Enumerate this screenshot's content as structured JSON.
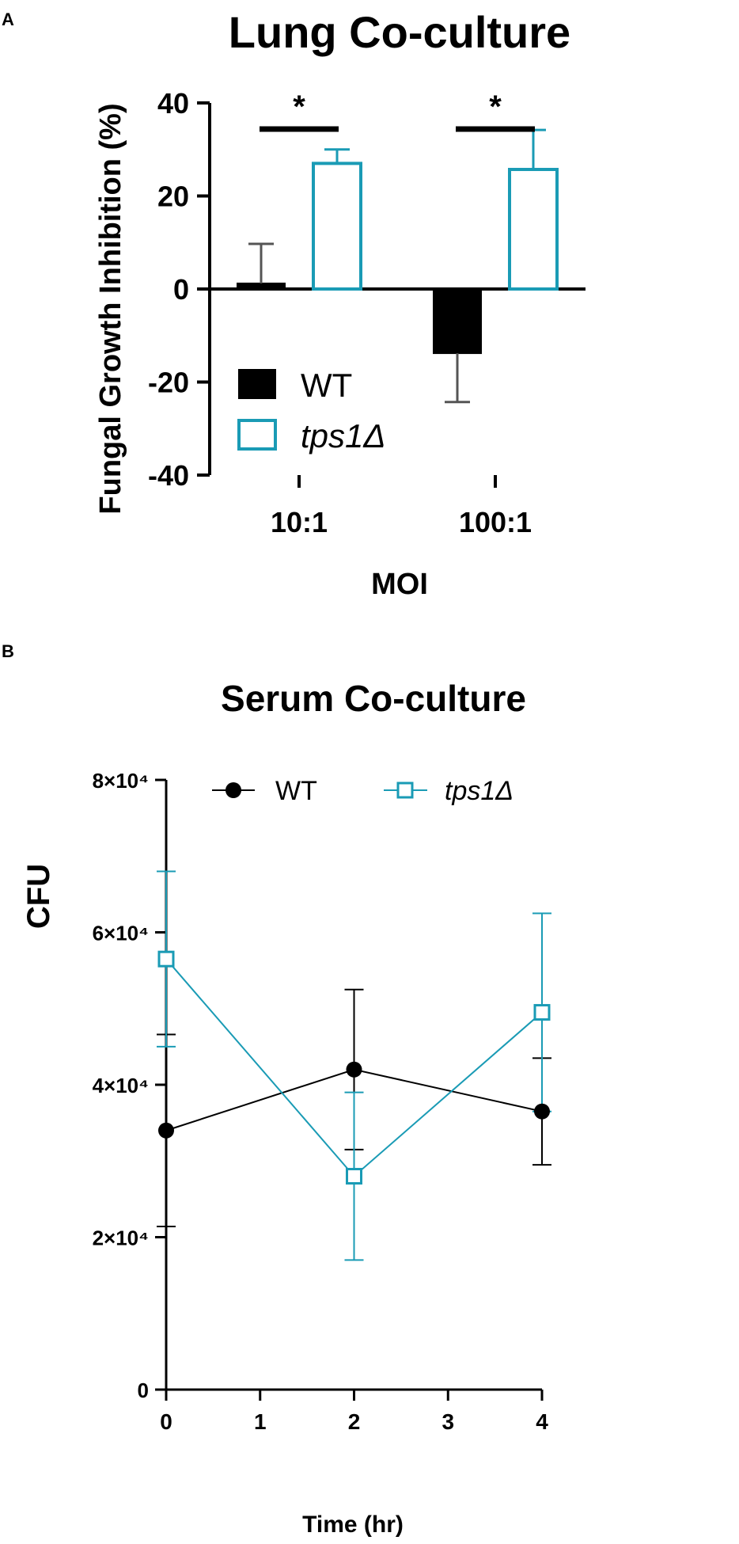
{
  "chart_data": [
    {
      "type": "bar",
      "panel_label": "A",
      "title": "Lung Co-culture",
      "xlabel": "MOI",
      "ylabel": "Fungal Growth Inhibition (%)",
      "ylim": [
        -40,
        40
      ],
      "yticks": [
        -40,
        -20,
        0,
        20,
        40
      ],
      "categories": [
        "10:1",
        "100:1"
      ],
      "series": [
        {
          "name": "WT",
          "values": [
            1.2,
            -13.8
          ],
          "errors": [
            8.5,
            10.5
          ],
          "color": "#000000",
          "fill": "filled"
        },
        {
          "name": "tps1Δ",
          "values": [
            27.0,
            25.7
          ],
          "errors": [
            3.0,
            8.5
          ],
          "color": "#1a9bb5",
          "fill": "open"
        }
      ],
      "annotations": [
        {
          "text": "*",
          "category": "10:1"
        },
        {
          "text": "*",
          "category": "100:1"
        }
      ],
      "legend_position": "bottom-left"
    },
    {
      "type": "line",
      "panel_label": "B",
      "title": "Serum Co-culture",
      "xlabel": "Time (hr)",
      "ylabel": "CFU",
      "xlim": [
        0,
        4
      ],
      "xticks": [
        "0",
        "1",
        "2",
        "3",
        "4"
      ],
      "ylim": [
        0,
        80000
      ],
      "ytick_values": [
        0,
        20000,
        40000,
        60000,
        80000
      ],
      "ytick_labels": [
        "0",
        "2×10⁴",
        "4×10⁴",
        "6×10⁴",
        "8×10⁴"
      ],
      "x": [
        0,
        2,
        4
      ],
      "series": [
        {
          "name": "WT",
          "values": [
            34000,
            42000,
            36500
          ],
          "errors": [
            12600,
            10500,
            7000
          ],
          "color": "#000000",
          "marker": "filled-circle"
        },
        {
          "name": "tps1Δ",
          "values": [
            56500,
            28000,
            49500
          ],
          "errors": [
            11500,
            11000,
            13000
          ],
          "color": "#1a9bb5",
          "marker": "open-square"
        }
      ],
      "legend_position": "top"
    }
  ]
}
